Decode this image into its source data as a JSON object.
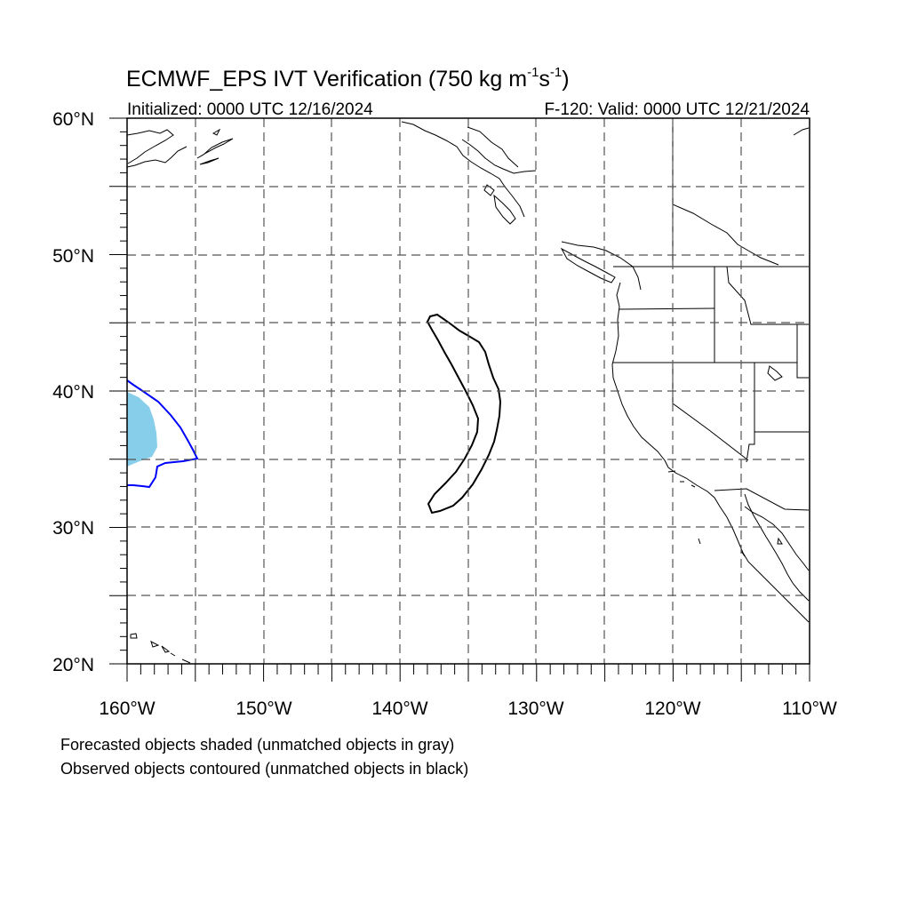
{
  "title": {
    "main": "ECMWF_EPS IVT Verification (750 kg m",
    "sup1": "-1",
    "mid": "s",
    "sup2": "-1",
    "close": ")"
  },
  "subtitle_left": "Initialized: 0000 UTC 12/16/2024",
  "subtitle_right": "F-120: Valid: 0000 UTC 12/21/2024",
  "lat_labels": [
    "60°N",
    "50°N",
    "40°N",
    "30°N",
    "20°N"
  ],
  "lon_labels": [
    "160°W",
    "150°W",
    "140°W",
    "130°W",
    "120°W",
    "110°W"
  ],
  "map": {
    "lon_range": [
      -160,
      -110
    ],
    "lat_range": [
      20,
      60
    ],
    "grid": true,
    "colors": {
      "forecast_fill": "#87ceeb",
      "observed_matched": "#0000ff",
      "observed_unmatched": "#000000",
      "coastline": "#000000"
    }
  },
  "footnotes": [
    "Forecasted objects shaded (unmatched objects in gray)",
    "Observed objects contoured (unmatched objects in black)"
  ]
}
